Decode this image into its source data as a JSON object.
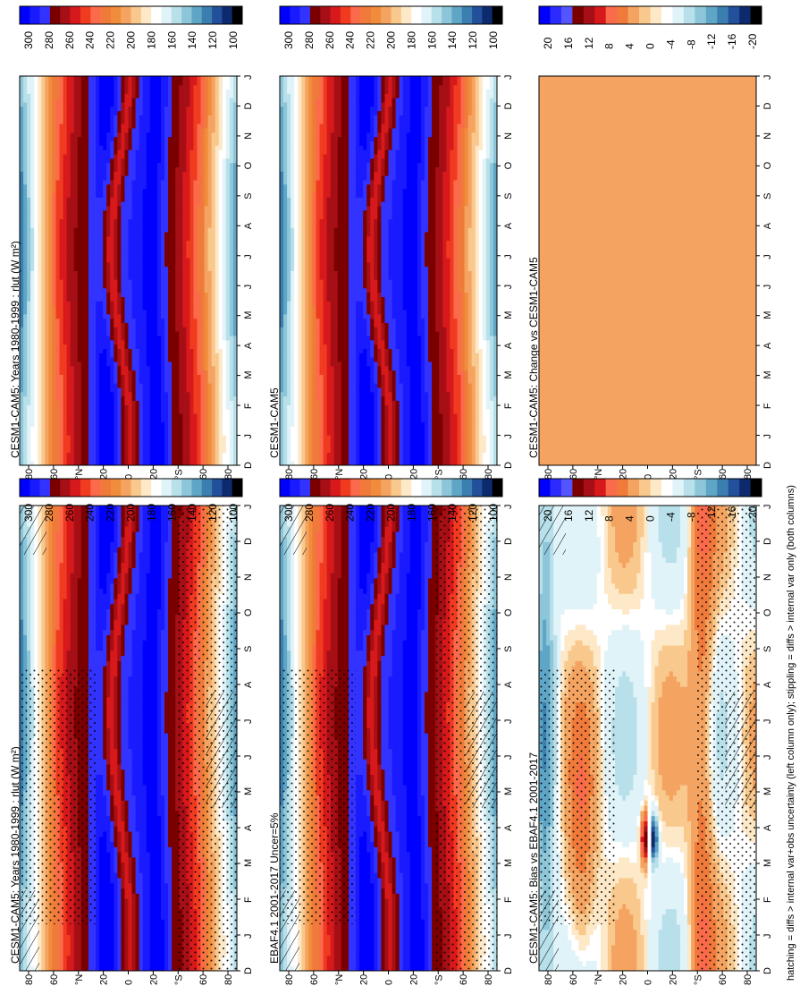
{
  "footnote": "hatching = diffs > internal var+obs uncertainty (left column only); stippling = diffs > internal var only (both columns)",
  "months": [
    "D",
    "J",
    "F",
    "M",
    "A",
    "M",
    "J",
    "J",
    "A",
    "S",
    "O",
    "N",
    "D",
    "J"
  ],
  "lat_ticks": [
    "80",
    "60",
    "°N",
    "20",
    "0",
    "20",
    "°S",
    "60",
    "80"
  ],
  "abs_levels": [
    "300",
    "280",
    "260",
    "240",
    "220",
    "200",
    "180",
    "160",
    "140",
    "120",
    "100"
  ],
  "diff_levels": [
    "20",
    "16",
    "12",
    "8",
    "4",
    "0",
    "-4",
    "-8",
    "-12",
    "-16",
    "-20"
  ],
  "colors": {
    "abs_scale": [
      "#0000ff",
      "#1a1aff",
      "#3333ff",
      "#7a0000",
      "#a50f15",
      "#d7191c",
      "#f03b20",
      "#fb6a4a",
      "#ef7a3a",
      "#f08c3c",
      "#f4a460",
      "#f8c88c",
      "#fde8c8",
      "#ffffff",
      "#e0f3f8",
      "#b8e0ea",
      "#8ec6d9",
      "#5fa6c6",
      "#3a7fb0",
      "#22509a",
      "#0d2a6e",
      "#000000"
    ],
    "diff_scale": [
      "#0000ff",
      "#2b2bff",
      "#5555ff",
      "#7a0000",
      "#a50f15",
      "#d7191c",
      "#fb6a4a",
      "#ef7a3a",
      "#f4a460",
      "#f8c88c",
      "#fde8c8",
      "#ffffff",
      "#e0f3f8",
      "#b8e0ea",
      "#8ec6d9",
      "#5fa6c6",
      "#3a7fb0",
      "#22509a",
      "#0d2a6e",
      "#000000"
    ],
    "uniform_change": "#f4a460"
  },
  "chart_data": [
    {
      "type": "heatmap",
      "title": "CESM1-CAM5: Years 1980-1999 : rlut (W m²)",
      "variable": "rlut",
      "units": "W m²",
      "x": [
        "D",
        "J",
        "F",
        "M",
        "A",
        "M",
        "J",
        "J",
        "A",
        "S",
        "O",
        "N",
        "D",
        "J"
      ],
      "y": [
        "80",
        "60",
        "°N",
        "20",
        "0",
        "20",
        "°S",
        "60",
        "80"
      ],
      "colorbar": [
        "300",
        "280",
        "260",
        "240",
        "220",
        "200",
        "180",
        "160",
        "140",
        "120",
        "100"
      ],
      "hatching": true,
      "stippling": true
    },
    {
      "type": "heatmap",
      "title": "CESM1-CAM5: Years 1980-1999 : rlut (W m²)",
      "variable": "rlut",
      "units": "W m²",
      "x": [
        "D",
        "J",
        "F",
        "M",
        "A",
        "M",
        "J",
        "J",
        "A",
        "S",
        "O",
        "N",
        "D",
        "J"
      ],
      "y": [
        "80",
        "60",
        "°N",
        "20",
        "0",
        "20",
        "°S",
        "60",
        "80"
      ],
      "colorbar": [
        "300",
        "280",
        "260",
        "240",
        "220",
        "200",
        "180",
        "160",
        "140",
        "120",
        "100"
      ],
      "hatching": false,
      "stippling": false
    },
    {
      "type": "heatmap",
      "title": "EBAF4.1 2001-2017 Uncer=5%",
      "x": [
        "D",
        "J",
        "F",
        "M",
        "A",
        "M",
        "J",
        "J",
        "A",
        "S",
        "O",
        "N",
        "D",
        "J"
      ],
      "y": [
        "80",
        "60",
        "°N",
        "20",
        "0",
        "20",
        "°S",
        "60",
        "80"
      ],
      "colorbar": [
        "300",
        "280",
        "260",
        "240",
        "220",
        "200",
        "180",
        "160",
        "140",
        "120",
        "100"
      ],
      "hatching": true,
      "stippling": true
    },
    {
      "type": "heatmap",
      "title": "CESM1-CAM5",
      "x": [
        "D",
        "J",
        "F",
        "M",
        "A",
        "M",
        "J",
        "J",
        "A",
        "S",
        "O",
        "N",
        "D",
        "J"
      ],
      "y": [
        "80",
        "60",
        "°N",
        "20",
        "0",
        "20",
        "°S",
        "60",
        "80"
      ],
      "colorbar": [
        "300",
        "280",
        "260",
        "240",
        "220",
        "200",
        "180",
        "160",
        "140",
        "120",
        "100"
      ],
      "hatching": false,
      "stippling": false
    },
    {
      "type": "heatmap",
      "title": "CESM1-CAM5: Bias vs EBAF4.1 2001-2017",
      "x": [
        "D",
        "J",
        "F",
        "M",
        "A",
        "M",
        "J",
        "J",
        "A",
        "S",
        "O",
        "N",
        "D",
        "J"
      ],
      "y": [
        "80",
        "60",
        "°N",
        "20",
        "0",
        "20",
        "°S",
        "60",
        "80"
      ],
      "colorbar": [
        "20",
        "16",
        "12",
        "8",
        "4",
        "0",
        "-4",
        "-8",
        "-12",
        "-16",
        "-20"
      ],
      "hatching": true,
      "stippling": true
    },
    {
      "type": "heatmap",
      "title": "CESM1-CAM5: Change vs CESM1-CAM5",
      "x": [
        "D",
        "J",
        "F",
        "M",
        "A",
        "M",
        "J",
        "J",
        "A",
        "S",
        "O",
        "N",
        "D",
        "J"
      ],
      "y": [
        "80",
        "60",
        "°N",
        "20",
        "0",
        "20",
        "°S",
        "60",
        "80"
      ],
      "colorbar": [
        "20",
        "16",
        "12",
        "8",
        "4",
        "0",
        "-4",
        "-8",
        "-12",
        "-16",
        "-20"
      ],
      "uniform_value": 4,
      "hatching": false,
      "stippling": false
    }
  ]
}
